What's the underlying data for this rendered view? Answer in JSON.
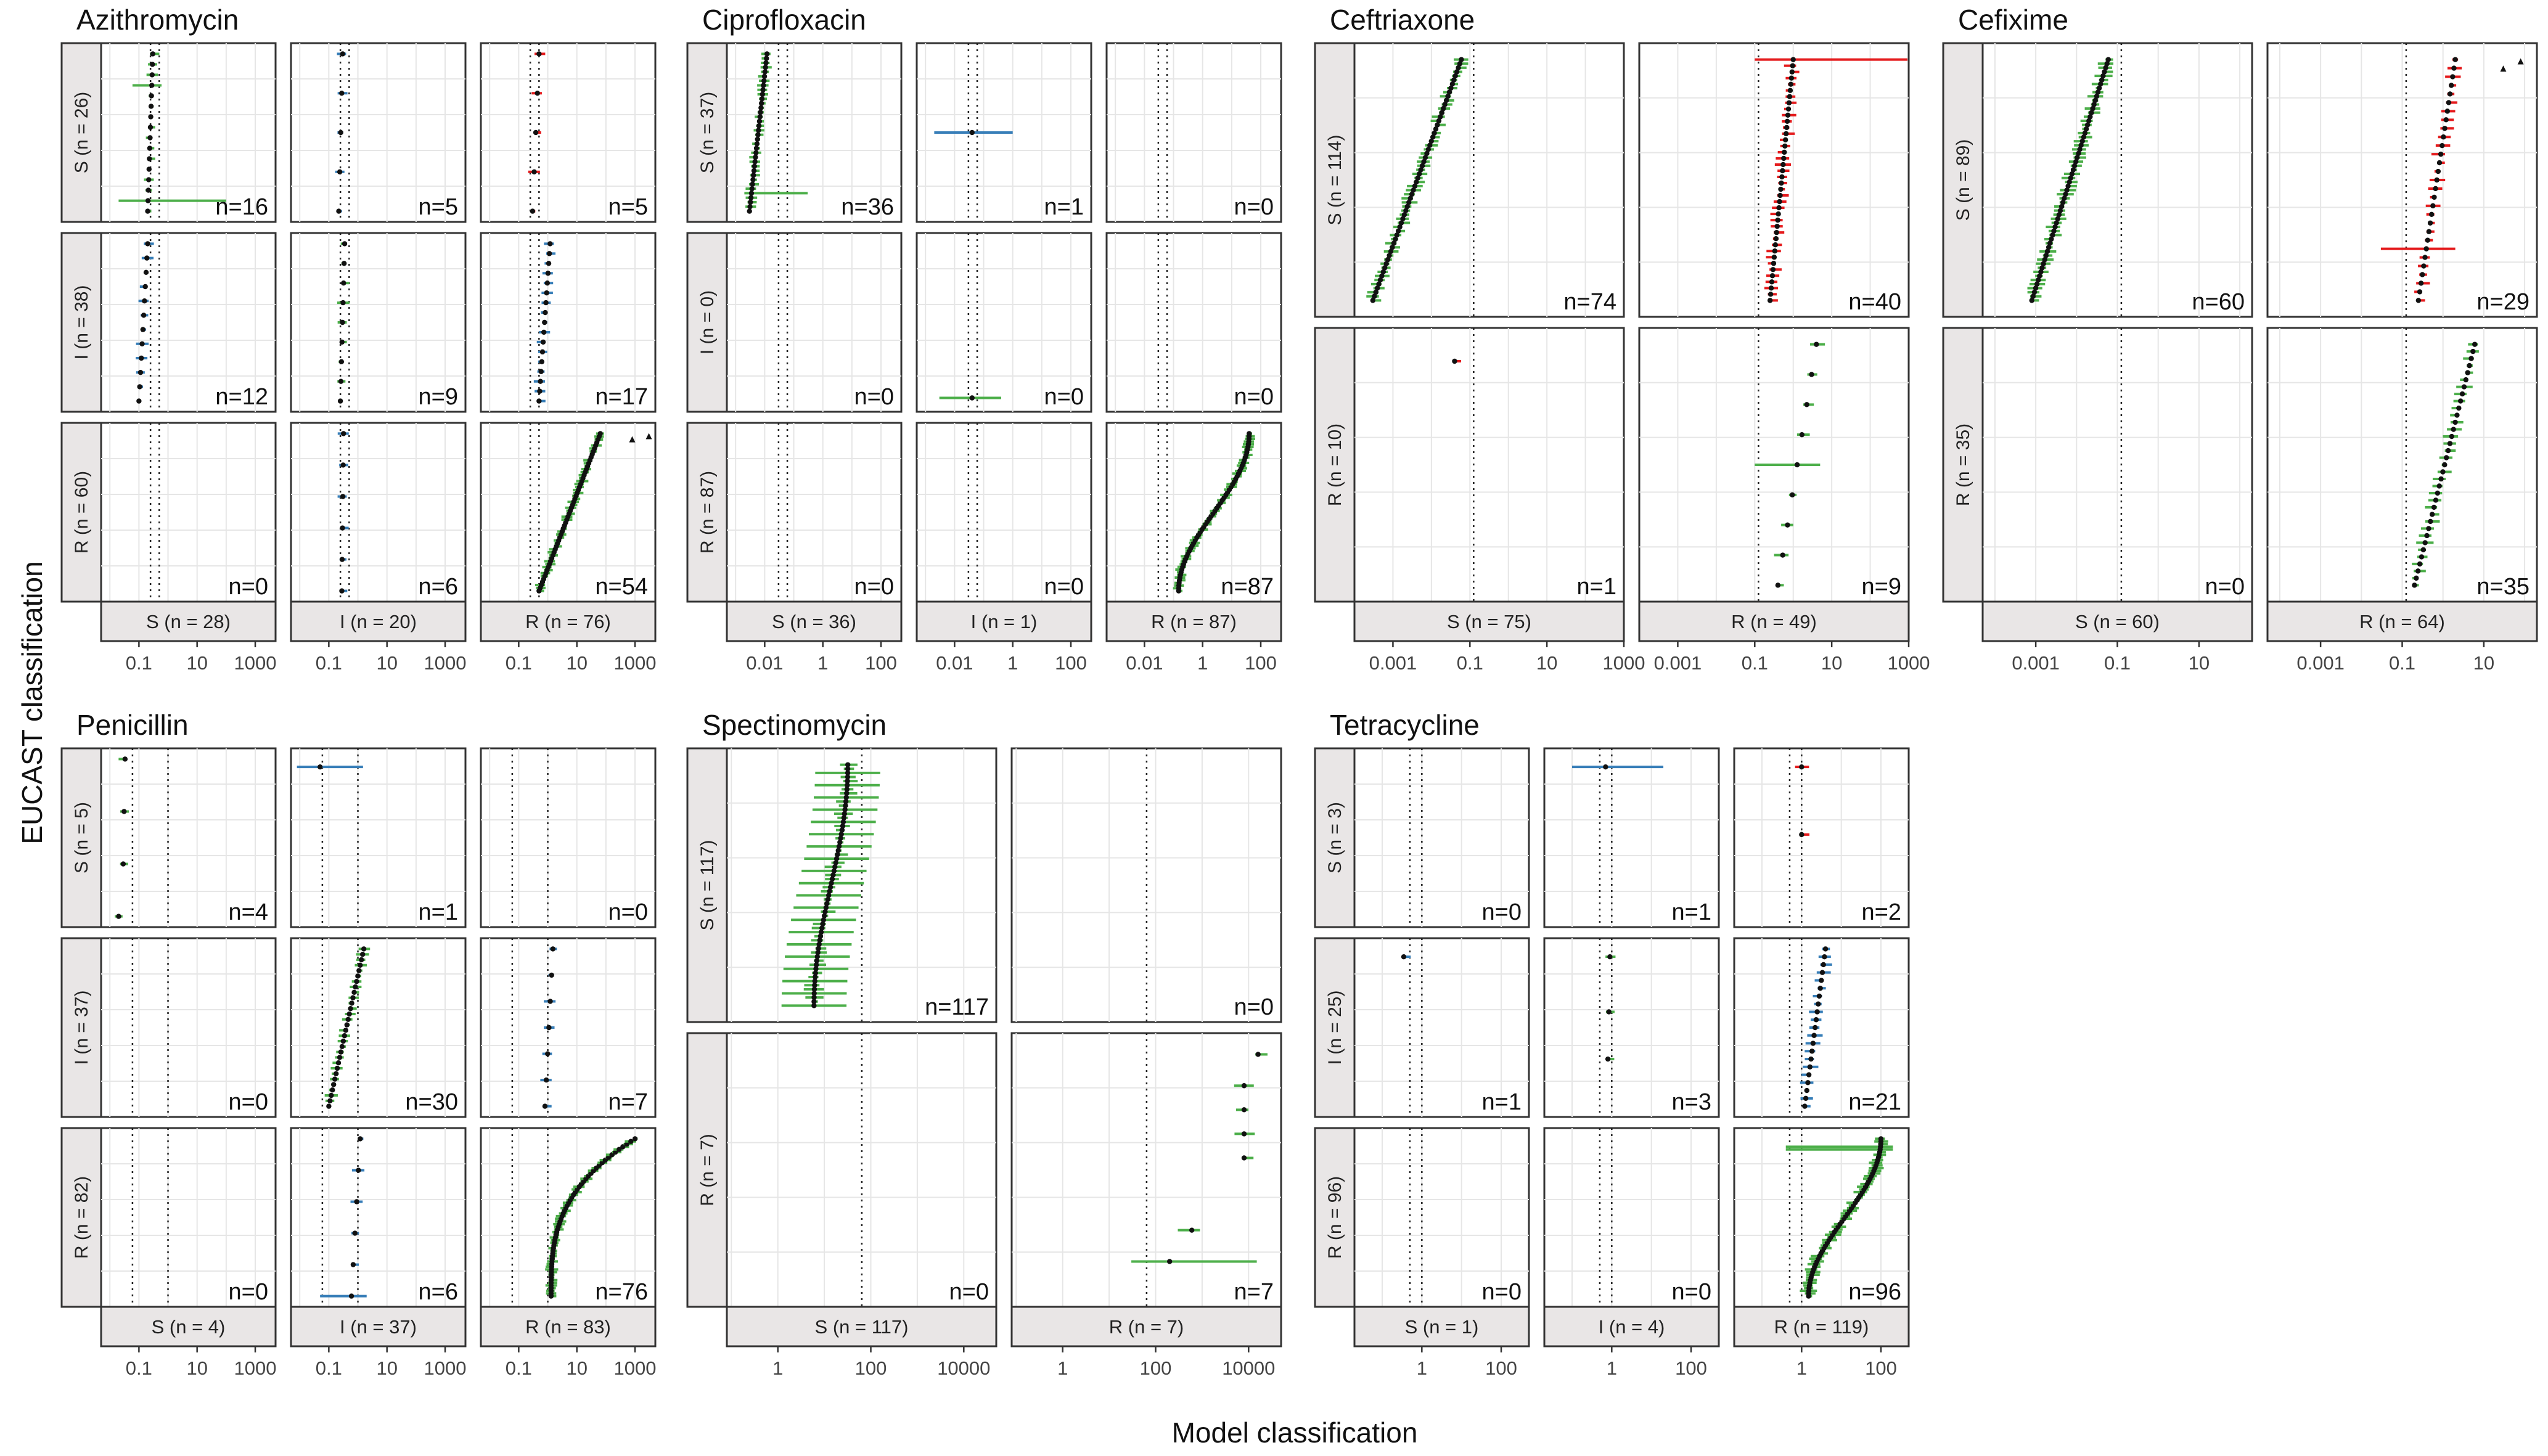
{
  "figure": {
    "ylabel": "EUCAST classification",
    "xlabel": "Model classification"
  },
  "colors": {
    "correct": "#4daf4a",
    "minor": "#377eb8",
    "major": "#e41a1c",
    "panel_bg": "#ffffff",
    "grid": "#e6e6e6",
    "strip_bg": "#e9e6e6",
    "border": "#333333",
    "threshold": "#222222"
  },
  "chart_data": [
    {
      "type": "scatter",
      "title": "Azithromycin",
      "x_scale": "log",
      "xlim": [
        0.005,
        5000
      ],
      "x_tick_labels": [
        "0.1",
        "10",
        "1000"
      ],
      "x_tick_values": [
        0.1,
        10,
        1000
      ],
      "thresholds": [
        0.25,
        0.5
      ],
      "cols": [
        {
          "label": "S (n = 28)"
        },
        {
          "label": "I (n = 20)"
        },
        {
          "label": "R (n = 76)"
        }
      ],
      "rows": [
        {
          "label": "S (n = 26)",
          "cells": [
            {
              "n_label": "n=16",
              "n": 16,
              "lo": 0.2,
              "hi": 0.3,
              "color": "correct",
              "err": [
                [
                  1,
                  0.02,
                  100
                ],
                [
                  12,
                  0.06,
                  0.6
                ]
              ]
            },
            {
              "n_label": "n=5",
              "n": 5,
              "lo": 0.22,
              "hi": 0.3,
              "color": "minor"
            },
            {
              "n_label": "n=5",
              "n": 5,
              "lo": 0.3,
              "hi": 0.5,
              "color": "major"
            }
          ]
        },
        {
          "label": "I (n = 38)",
          "cells": [
            {
              "n_label": "n=12",
              "n": 12,
              "lo": 0.1,
              "hi": 0.2,
              "color": "minor"
            },
            {
              "n_label": "n=9",
              "n": 9,
              "lo": 0.25,
              "hi": 0.35,
              "color": "correct"
            },
            {
              "n_label": "n=17",
              "n": 17,
              "lo": 0.5,
              "hi": 1.2,
              "color": "minor"
            }
          ]
        },
        {
          "label": "R (n = 60)",
          "cells": [
            {
              "n_label": "n=0",
              "n": 0
            },
            {
              "n_label": "n=6",
              "n": 6,
              "lo": 0.28,
              "hi": 0.32,
              "color": "minor"
            },
            {
              "n_label": "n=54",
              "n": 54,
              "lo": 0.5,
              "hi": 64,
              "color": "correct",
              "curve": "log",
              "outliers": [
                [
                  800,
                  0.96
                ],
                [
                  3000,
                  0.98
                ]
              ]
            }
          ]
        }
      ]
    },
    {
      "type": "scatter",
      "title": "Ciprofloxacin",
      "x_scale": "log",
      "xlim": [
        0.0005,
        500
      ],
      "x_tick_labels": [
        "0.01",
        "1",
        "100"
      ],
      "x_tick_values": [
        0.01,
        1,
        100
      ],
      "thresholds": [
        0.03,
        0.06
      ],
      "cols": [
        {
          "label": "S (n = 36)"
        },
        {
          "label": "I (n = 1)"
        },
        {
          "label": "R (n = 87)"
        }
      ],
      "rows": [
        {
          "label": "S (n = 37)",
          "cells": [
            {
              "n_label": "n=36",
              "n": 36,
              "lo": 0.003,
              "hi": 0.012,
              "color": "correct",
              "err": [
                [
                  4,
                  0.002,
                  0.3
                ]
              ]
            },
            {
              "n_label": "n=1",
              "n": 1,
              "lo": 0.04,
              "hi": 0.04,
              "color": "minor",
              "err": [
                [
                  0,
                  0.002,
                  1
                ]
              ]
            },
            {
              "n_label": "n=0",
              "n": 0
            }
          ]
        },
        {
          "label": "I (n = 0)",
          "cells": [
            {
              "n_label": "n=0",
              "n": 0
            },
            {
              "n_label": "n=0",
              "n": 0,
              "extra": [
                [
                  0.04,
                  0.07,
                  0.003,
                  0.4
                ]
              ]
            },
            {
              "n_label": "n=0",
              "n": 0
            }
          ]
        },
        {
          "label": "R (n = 87)",
          "cells": [
            {
              "n_label": "n=0",
              "n": 0
            },
            {
              "n_label": "n=0",
              "n": 0
            },
            {
              "n_label": "n=87",
              "n": 87,
              "lo": 0.15,
              "hi": 40,
              "color": "correct",
              "curve": "s"
            }
          ]
        }
      ]
    },
    {
      "type": "scatter",
      "title": "Ceftriaxone",
      "x_scale": "log",
      "xlim": [
        0.0001,
        1000
      ],
      "x_tick_labels": [
        "0.001",
        "0.1",
        "10",
        "1000"
      ],
      "x_tick_values": [
        0.001,
        0.1,
        10,
        1000
      ],
      "thresholds": [
        0.125
      ],
      "cols": [
        {
          "label": "S (n = 75)"
        },
        {
          "label": "R (n = 49)"
        }
      ],
      "rows": [
        {
          "label": "S (n = 114)",
          "cells": [
            {
              "n_label": "n=74",
              "n": 74,
              "lo": 0.0003,
              "hi": 0.06,
              "color": "correct",
              "curve": "log"
            },
            {
              "n_label": "n=40",
              "n": 40,
              "lo": 0.25,
              "hi": 1.0,
              "color": "major",
              "err": [
                [
                  39,
                  0.1,
                  1000
                ]
              ]
            }
          ]
        },
        {
          "label": "R (n = 10)",
          "cells": [
            {
              "n_label": "n=1",
              "n": 1,
              "lo": 0.04,
              "hi": 0.04,
              "color": "major",
              "yfrac": [
                0.93
              ]
            },
            {
              "n_label": "n=9",
              "n": 9,
              "lo": 0.4,
              "hi": 4,
              "color": "correct",
              "err": [
                [
                  4,
                  0.1,
                  5
                ]
              ]
            }
          ]
        }
      ]
    },
    {
      "type": "scatter",
      "title": "Cefixime",
      "x_scale": "log",
      "xlim": [
        5e-05,
        200
      ],
      "x_tick_labels": [
        "0.001",
        "0.1",
        "10"
      ],
      "x_tick_values": [
        0.001,
        0.1,
        10
      ],
      "thresholds": [
        0.125
      ],
      "cols": [
        {
          "label": "S (n = 60)"
        },
        {
          "label": "R (n = 64)"
        }
      ],
      "rows": [
        {
          "label": "S (n = 89)",
          "cells": [
            {
              "n_label": "n=60",
              "n": 60,
              "lo": 0.0008,
              "hi": 0.06,
              "color": "correct",
              "curve": "log"
            },
            {
              "n_label": "n=29",
              "n": 29,
              "lo": 0.25,
              "hi": 2.0,
              "color": "major",
              "outliers": [
                [
                  30,
                  0.96
                ],
                [
                  80,
                  0.99
                ]
              ],
              "err": [
                [
                  6,
                  0.03,
                  2
                ]
              ]
            }
          ]
        },
        {
          "label": "R (n = 35)",
          "cells": [
            {
              "n_label": "n=0",
              "n": 0
            },
            {
              "n_label": "n=35",
              "n": 35,
              "lo": 0.2,
              "hi": 6,
              "color": "correct",
              "curve": "log"
            }
          ]
        }
      ]
    },
    {
      "type": "scatter",
      "title": "Penicillin",
      "x_scale": "log",
      "xlim": [
        0.005,
        5000
      ],
      "x_tick_labels": [
        "0.1",
        "10",
        "1000"
      ],
      "x_tick_values": [
        0.1,
        10,
        1000
      ],
      "thresholds": [
        0.06,
        1
      ],
      "cols": [
        {
          "label": "S (n = 4)"
        },
        {
          "label": "I (n = 37)"
        },
        {
          "label": "R (n = 83)"
        }
      ],
      "rows": [
        {
          "label": "S (n = 5)",
          "cells": [
            {
              "n_label": "n=4",
              "n": 4,
              "lo": 0.02,
              "hi": 0.06,
              "color": "correct",
              "scatter": true
            },
            {
              "n_label": "n=1",
              "n": 1,
              "lo": 0.05,
              "hi": 0.05,
              "color": "minor",
              "yfrac": [
                0.95
              ],
              "err": [
                [
                  0,
                  0.008,
                  1.5
                ]
              ]
            },
            {
              "n_label": "n=0",
              "n": 0
            }
          ]
        },
        {
          "label": "I (n = 37)",
          "cells": [
            {
              "n_label": "n=0",
              "n": 0
            },
            {
              "n_label": "n=30",
              "n": 30,
              "lo": 0.1,
              "hi": 1.6,
              "color": "correct"
            },
            {
              "n_label": "n=7",
              "n": 7,
              "lo": 0.8,
              "hi": 1.5,
              "color": "minor"
            }
          ]
        },
        {
          "label": "R (n = 82)",
          "cells": [
            {
              "n_label": "n=0",
              "n": 0
            },
            {
              "n_label": "n=6",
              "n": 6,
              "lo": 0.6,
              "hi": 1.2,
              "color": "minor",
              "err": [
                [
                  0,
                  0.05,
                  2
                ]
              ]
            },
            {
              "n_label": "n=76",
              "n": 76,
              "lo": 1.3,
              "hi": 1000,
              "color": "correct",
              "curve": "hockey"
            }
          ]
        }
      ]
    },
    {
      "type": "scatter",
      "title": "Spectinomycin",
      "x_scale": "log",
      "xlim": [
        0.08,
        50000
      ],
      "x_tick_labels": [
        "1",
        "100",
        "10000"
      ],
      "x_tick_values": [
        1,
        100,
        10000
      ],
      "thresholds": [
        64
      ],
      "cols": [
        {
          "label": "S (n = 117)"
        },
        {
          "label": "R (n = 7)"
        }
      ],
      "rows": [
        {
          "label": "S (n = 117)",
          "cells": [
            {
              "n_label": "n=117",
              "n": 117,
              "lo": 6,
              "hi": 32,
              "color": "correct",
              "curve": "s",
              "wide": true
            },
            {
              "n_label": "n=0",
              "n": 0
            }
          ]
        },
        {
          "label": "R (n = 7)",
          "cells": [
            {
              "n_label": "n=0",
              "n": 0
            },
            {
              "n_label": "n=7",
              "n": 7,
              "lo": 300,
              "hi": 16000,
              "color": "correct",
              "manual": [
                [
                  200,
                  0.12,
                  30,
                  15000
                ],
                [
                  600,
                  0.25,
                  300,
                  900
                ],
                [
                  8000,
                  0.55
                ],
                [
                  8000,
                  0.65
                ],
                [
                  8000,
                  0.75
                ],
                [
                  8000,
                  0.85
                ],
                [
                  16000,
                  0.98
                ]
              ]
            }
          ]
        }
      ]
    },
    {
      "type": "scatter",
      "title": "Tetracycline",
      "x_scale": "log",
      "xlim": [
        0.02,
        500
      ],
      "x_tick_labels": [
        "1",
        "100"
      ],
      "x_tick_values": [
        1,
        100
      ],
      "thresholds": [
        0.5,
        1
      ],
      "cols": [
        {
          "label": "S (n = 1)"
        },
        {
          "label": "I (n = 4)"
        },
        {
          "label": "R (n = 119)"
        }
      ],
      "rows": [
        {
          "label": "S (n = 3)",
          "cells": [
            {
              "n_label": "n=0",
              "n": 0
            },
            {
              "n_label": "n=1",
              "n": 1,
              "lo": 0.7,
              "hi": 0.7,
              "color": "minor",
              "yfrac": [
                0.95
              ],
              "err": [
                [
                  0,
                  0.1,
                  20
                ]
              ]
            },
            {
              "n_label": "n=2",
              "n": 2,
              "lo": 1.0,
              "hi": 1.0,
              "color": "major",
              "yfrac": [
                0.52,
                0.95
              ]
            }
          ]
        },
        {
          "label": "I (n = 25)",
          "cells": [
            {
              "n_label": "n=1",
              "n": 1,
              "lo": 0.35,
              "hi": 0.35,
              "color": "minor",
              "yfrac": [
                0.95
              ]
            },
            {
              "n_label": "n=3",
              "n": 3,
              "lo": 0.8,
              "hi": 0.9,
              "color": "correct",
              "yfrac": [
                0.3,
                0.6,
                0.95
              ]
            },
            {
              "n_label": "n=21",
              "n": 21,
              "lo": 1.2,
              "hi": 4,
              "color": "minor"
            }
          ]
        },
        {
          "label": "R (n = 96)",
          "cells": [
            {
              "n_label": "n=0",
              "n": 0
            },
            {
              "n_label": "n=0",
              "n": 0
            },
            {
              "n_label": "n=96",
              "n": 96,
              "lo": 1.5,
              "hi": 100,
              "color": "correct",
              "curve": "s",
              "err": [
                [
                  88,
                  0.4,
                  200
                ],
                [
                  90,
                  0.4,
                  200
                ]
              ]
            }
          ]
        }
      ]
    }
  ]
}
